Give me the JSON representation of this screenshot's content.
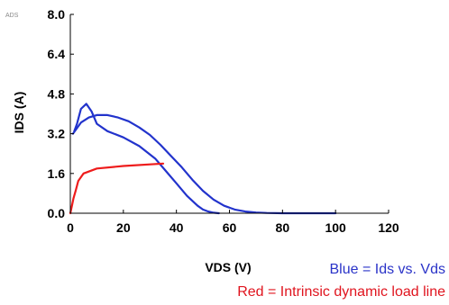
{
  "chart_data": {
    "type": "line",
    "corner_label": "ADS",
    "xlabel": "VDS (V)",
    "ylabel": "IDS (A)",
    "xlim": [
      0,
      120
    ],
    "ylim": [
      0,
      8.0
    ],
    "xticks": [
      "0",
      "20",
      "40",
      "60",
      "80",
      "100",
      "120"
    ],
    "yticks": [
      "0.0",
      "1.6",
      "3.2",
      "4.8",
      "6.4",
      "8.0"
    ],
    "grid": false,
    "series": [
      {
        "name": "Ids vs. Vds",
        "color": "#2233cc",
        "x": [
          1.5,
          2.5,
          4,
          6,
          8,
          10,
          14,
          20,
          26,
          32,
          36,
          40,
          44,
          48,
          50,
          52,
          54,
          56
        ],
        "y": [
          3.3,
          3.6,
          4.2,
          4.4,
          4.1,
          3.6,
          3.3,
          3.05,
          2.7,
          2.2,
          1.7,
          1.2,
          0.7,
          0.3,
          0.15,
          0.07,
          0.02,
          0.0
        ]
      },
      {
        "name": "Ids vs. Vds",
        "color": "#2233cc",
        "x": [
          1,
          2,
          4,
          7,
          10,
          14,
          18,
          22,
          26,
          30,
          34,
          38,
          42,
          46,
          50,
          54,
          58,
          62,
          66,
          70,
          74,
          80,
          90,
          100
        ],
        "y": [
          3.2,
          3.35,
          3.65,
          3.85,
          3.95,
          3.95,
          3.85,
          3.7,
          3.45,
          3.15,
          2.75,
          2.3,
          1.85,
          1.35,
          0.9,
          0.55,
          0.3,
          0.15,
          0.07,
          0.03,
          0.01,
          0.0,
          0.0,
          0.0
        ]
      },
      {
        "name": "Intrinsic dynamic load line",
        "color": "#ee1c1c",
        "x": [
          0,
          0.6,
          1.2,
          2,
          3,
          5,
          10,
          20,
          35
        ],
        "y": [
          0.0,
          0.3,
          0.6,
          0.9,
          1.3,
          1.6,
          1.8,
          1.9,
          2.0
        ]
      }
    ]
  },
  "captions": {
    "blue": "Blue = Ids vs. Vds",
    "red": "Red = Intrinsic dynamic load line"
  }
}
